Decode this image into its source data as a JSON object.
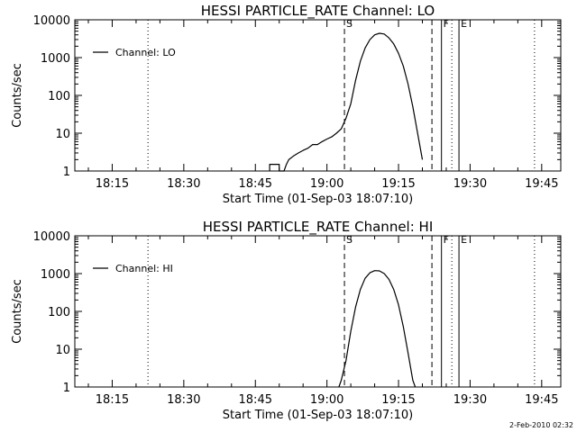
{
  "footer": {
    "timestamp": "2-Feb-2010 02:32"
  },
  "chart_data": [
    {
      "type": "line",
      "title": "HESSI PARTICLE_RATE Channel: LO",
      "xlabel": "Start Time (01-Sep-03 18:07:10)",
      "ylabel": "Counts/sec",
      "y_scale": "log",
      "ylim": [
        1,
        10000
      ],
      "xlim": [
        "18:07:10",
        "19:49:00"
      ],
      "x_tick_labels": [
        "18:15",
        "18:30",
        "18:45",
        "19:00",
        "19:15",
        "19:30",
        "19:45"
      ],
      "y_tick_labels": [
        "1",
        "10",
        "100",
        "1000",
        "10000"
      ],
      "legend": {
        "position": "top-left",
        "entries": [
          "Channel: LO"
        ]
      },
      "markers": [
        {
          "label": "",
          "time": "18:07:10",
          "style": "dotted"
        },
        {
          "label": "",
          "time": "18:22:30",
          "style": "dotted"
        },
        {
          "label": "S",
          "time": "19:03:40",
          "style": "dashed"
        },
        {
          "label": "",
          "time": "19:22:00",
          "style": "dashed"
        },
        {
          "label": "F",
          "time": "19:24:00",
          "style": "solid"
        },
        {
          "label": "E",
          "time": "19:27:40",
          "style": "solid"
        },
        {
          "label": "",
          "time": "19:26:10",
          "style": "dotted"
        },
        {
          "label": "",
          "time": "19:43:30",
          "style": "dotted"
        }
      ],
      "series": [
        {
          "name": "Channel: LO",
          "points": [
            [
              "18:48:00",
              1
            ],
            [
              "18:48:00",
              1.5
            ],
            [
              "18:50:00",
              1.5
            ],
            [
              "18:50:00",
              1
            ],
            [
              "18:51:00",
              1
            ],
            [
              "18:51:30",
              1.5
            ],
            [
              "18:52:00",
              2
            ],
            [
              "18:53:00",
              2.5
            ],
            [
              "18:54:00",
              3
            ],
            [
              "18:55:00",
              3.5
            ],
            [
              "18:56:00",
              4
            ],
            [
              "18:57:00",
              5
            ],
            [
              "18:58:00",
              5
            ],
            [
              "18:59:00",
              6
            ],
            [
              "19:00:00",
              7
            ],
            [
              "19:01:00",
              8
            ],
            [
              "19:02:00",
              10
            ],
            [
              "19:03:00",
              13
            ],
            [
              "19:04:00",
              25
            ],
            [
              "19:05:00",
              60
            ],
            [
              "19:06:00",
              250
            ],
            [
              "19:07:00",
              800
            ],
            [
              "19:08:00",
              1800
            ],
            [
              "19:09:00",
              3000
            ],
            [
              "19:10:00",
              4000
            ],
            [
              "19:11:00",
              4400
            ],
            [
              "19:12:00",
              4200
            ],
            [
              "19:13:00",
              3300
            ],
            [
              "19:14:00",
              2300
            ],
            [
              "19:15:00",
              1300
            ],
            [
              "19:16:00",
              600
            ],
            [
              "19:17:00",
              200
            ],
            [
              "19:18:00",
              50
            ],
            [
              "19:19:00",
              10
            ],
            [
              "19:20:00",
              2
            ]
          ]
        }
      ]
    },
    {
      "type": "line",
      "title": "HESSI PARTICLE_RATE Channel: HI",
      "xlabel": "Start Time (01-Sep-03 18:07:10)",
      "ylabel": "Counts/sec",
      "y_scale": "log",
      "ylim": [
        1,
        10000
      ],
      "xlim": [
        "18:07:10",
        "19:49:00"
      ],
      "x_tick_labels": [
        "18:15",
        "18:30",
        "18:45",
        "19:00",
        "19:15",
        "19:30",
        "19:45"
      ],
      "y_tick_labels": [
        "1",
        "10",
        "100",
        "1000",
        "10000"
      ],
      "legend": {
        "position": "top-left",
        "entries": [
          "Channel: HI"
        ]
      },
      "markers": [
        {
          "label": "",
          "time": "18:07:10",
          "style": "dotted"
        },
        {
          "label": "",
          "time": "18:22:30",
          "style": "dotted"
        },
        {
          "label": "S",
          "time": "19:03:40",
          "style": "dashed"
        },
        {
          "label": "",
          "time": "19:22:00",
          "style": "dashed"
        },
        {
          "label": "F",
          "time": "19:24:00",
          "style": "solid"
        },
        {
          "label": "E",
          "time": "19:27:40",
          "style": "solid"
        },
        {
          "label": "",
          "time": "19:26:10",
          "style": "dotted"
        },
        {
          "label": "",
          "time": "19:43:30",
          "style": "dotted"
        }
      ],
      "series": [
        {
          "name": "Channel: HI",
          "points": [
            [
              "19:02:30",
              1
            ],
            [
              "19:03:00",
              1.5
            ],
            [
              "19:04:00",
              5
            ],
            [
              "19:05:00",
              30
            ],
            [
              "19:06:00",
              130
            ],
            [
              "19:07:00",
              380
            ],
            [
              "19:08:00",
              750
            ],
            [
              "19:09:00",
              1050
            ],
            [
              "19:10:00",
              1200
            ],
            [
              "19:11:00",
              1180
            ],
            [
              "19:12:00",
              1000
            ],
            [
              "19:13:00",
              700
            ],
            [
              "19:14:00",
              380
            ],
            [
              "19:15:00",
              150
            ],
            [
              "19:16:00",
              40
            ],
            [
              "19:17:00",
              8
            ],
            [
              "19:18:00",
              1.5
            ],
            [
              "19:18:30",
              1
            ]
          ]
        }
      ]
    }
  ]
}
